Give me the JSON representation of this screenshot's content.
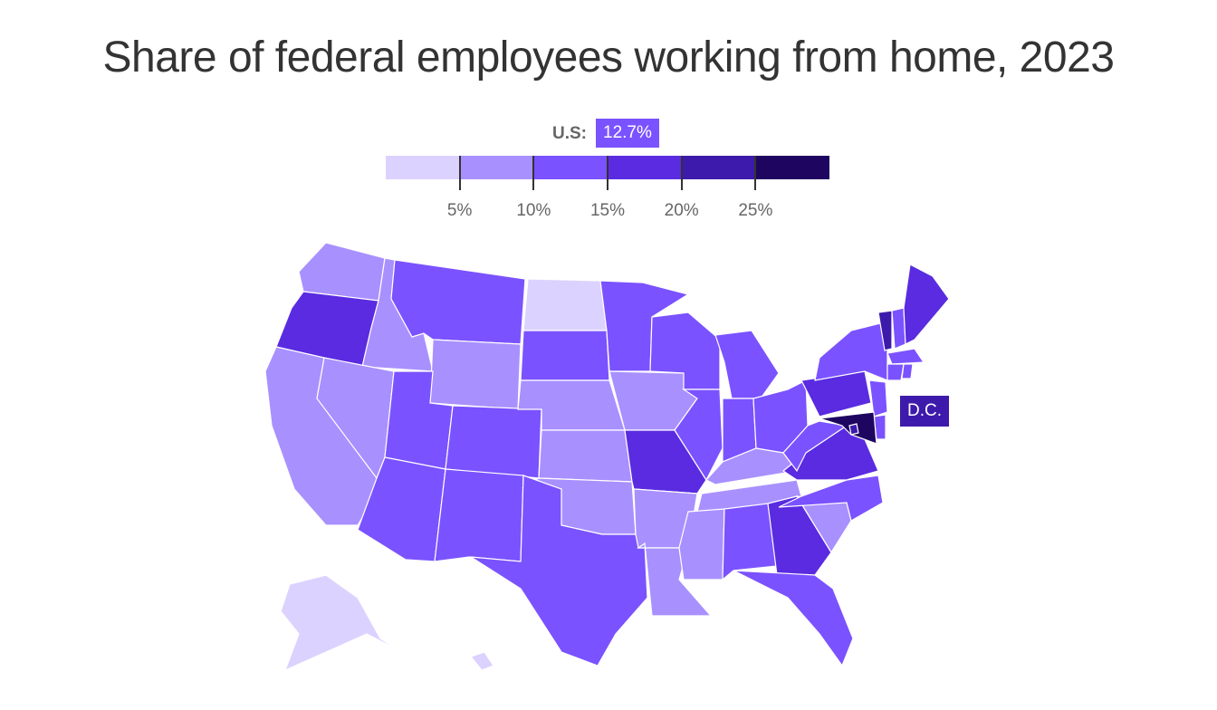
{
  "title": "Share of federal employees working from home, 2023",
  "us_average": {
    "label": "U.S:",
    "value_text": "12.7%",
    "value": 12.7
  },
  "legend": {
    "bins": [
      {
        "min": 0,
        "max": 5,
        "color": "#dcd2ff"
      },
      {
        "min": 5,
        "max": 10,
        "color": "#a990ff"
      },
      {
        "min": 10,
        "max": 15,
        "color": "#7b52ff"
      },
      {
        "min": 15,
        "max": 20,
        "color": "#5a2be0"
      },
      {
        "min": 20,
        "max": 25,
        "color": "#3d1aab"
      },
      {
        "min": 25,
        "max": 30,
        "color": "#1e0660"
      }
    ],
    "ticks": [
      "5%",
      "10%",
      "15%",
      "20%",
      "25%"
    ]
  },
  "callout": {
    "label": "D.C.",
    "state": "DC",
    "bin": 4
  },
  "states": [
    {
      "name": "WA",
      "bin": 1
    },
    {
      "name": "OR",
      "bin": 3
    },
    {
      "name": "CA",
      "bin": 1
    },
    {
      "name": "ID",
      "bin": 1
    },
    {
      "name": "NV",
      "bin": 1
    },
    {
      "name": "MT",
      "bin": 2
    },
    {
      "name": "WY",
      "bin": 1
    },
    {
      "name": "UT",
      "bin": 2
    },
    {
      "name": "AZ",
      "bin": 2
    },
    {
      "name": "CO",
      "bin": 2
    },
    {
      "name": "NM",
      "bin": 2
    },
    {
      "name": "ND",
      "bin": 0
    },
    {
      "name": "SD",
      "bin": 2
    },
    {
      "name": "NE",
      "bin": 1
    },
    {
      "name": "KS",
      "bin": 1
    },
    {
      "name": "OK",
      "bin": 1
    },
    {
      "name": "TX",
      "bin": 2
    },
    {
      "name": "MN",
      "bin": 2
    },
    {
      "name": "IA",
      "bin": 1
    },
    {
      "name": "MO",
      "bin": 3
    },
    {
      "name": "AR",
      "bin": 1
    },
    {
      "name": "LA",
      "bin": 1
    },
    {
      "name": "WI",
      "bin": 2
    },
    {
      "name": "IL",
      "bin": 2
    },
    {
      "name": "MI",
      "bin": 2
    },
    {
      "name": "IN",
      "bin": 2
    },
    {
      "name": "OH",
      "bin": 2
    },
    {
      "name": "KY",
      "bin": 1
    },
    {
      "name": "TN",
      "bin": 1
    },
    {
      "name": "MS",
      "bin": 1
    },
    {
      "name": "AL",
      "bin": 2
    },
    {
      "name": "GA",
      "bin": 3
    },
    {
      "name": "FL",
      "bin": 2
    },
    {
      "name": "SC",
      "bin": 1
    },
    {
      "name": "NC",
      "bin": 2
    },
    {
      "name": "VA",
      "bin": 3
    },
    {
      "name": "WV",
      "bin": 2
    },
    {
      "name": "PA",
      "bin": 3
    },
    {
      "name": "NY",
      "bin": 2
    },
    {
      "name": "VT",
      "bin": 4
    },
    {
      "name": "NH",
      "bin": 2
    },
    {
      "name": "ME",
      "bin": 3
    },
    {
      "name": "MA",
      "bin": 2
    },
    {
      "name": "CT",
      "bin": 2
    },
    {
      "name": "RI",
      "bin": 2
    },
    {
      "name": "NJ",
      "bin": 2
    },
    {
      "name": "DE",
      "bin": 2
    },
    {
      "name": "MD",
      "bin": 5
    },
    {
      "name": "DC",
      "bin": 4
    },
    {
      "name": "AK",
      "bin": 0
    },
    {
      "name": "HI",
      "bin": 0
    }
  ]
}
